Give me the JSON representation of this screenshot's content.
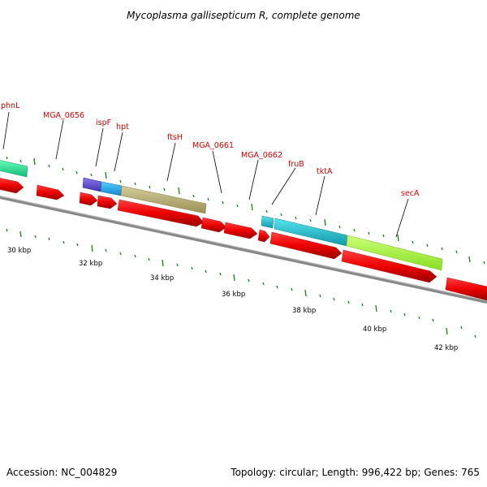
{
  "title": "Mycoplasma gallisepticum R, complete genome",
  "accession": "Accession: NC_004829",
  "topology": "Topology: circular; Length: 996,422 bp; Genes: 765",
  "gene_labels": [
    {
      "name": "phnL",
      "label": "phnL"
    },
    {
      "name": "mga0656",
      "label": "MGA_0656"
    },
    {
      "name": "ispf",
      "label": "ispF"
    },
    {
      "name": "hpt",
      "label": "hpt"
    },
    {
      "name": "ftsh",
      "label": "ftsH"
    },
    {
      "name": "mga0661",
      "label": "MGA_0661"
    },
    {
      "name": "mga0662",
      "label": "MGA_0662"
    },
    {
      "name": "frub",
      "label": "fruB"
    },
    {
      "name": "tkta",
      "label": "tktA"
    },
    {
      "name": "seca",
      "label": "secA"
    }
  ],
  "kbp_labels": [
    "30 kbp",
    "32 kbp",
    "34 kbp",
    "36 kbp",
    "38 kbp",
    "40 kbp",
    "42 kbp"
  ],
  "colors": {
    "cds": "#ee0000",
    "phnL_feature": "#22ee99",
    "ispF_feature": "#6655cc",
    "hpt_feature": "#22aaee",
    "ftsH_feature": "#bbb377",
    "tktA_feature": "#22c4d4",
    "secA_feature": "#aaff44",
    "backbone": "#777777",
    "tick": "#117711",
    "label": "#d40000"
  }
}
